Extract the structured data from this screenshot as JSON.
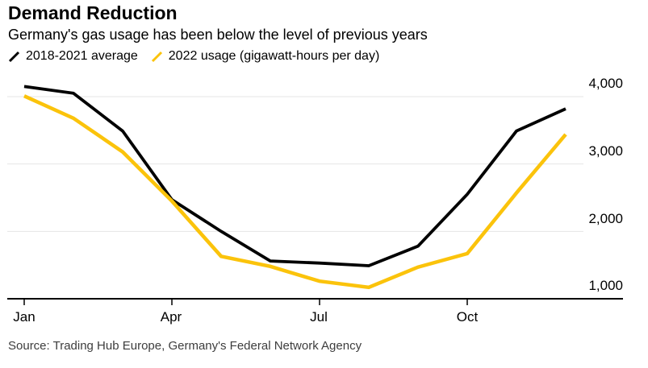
{
  "header": {
    "title": "Demand Reduction",
    "subtitle": "Germany's gas usage has been below the level of previous years"
  },
  "legend": [
    {
      "label": "2018-2021 average",
      "color": "#000000"
    },
    {
      "label": "2022 usage (gigawatt-hours per day)",
      "color": "#FBC30B"
    }
  ],
  "source": "Source: Trading Hub Europe, Germany's Federal Network Agency",
  "colors": {
    "series_average": "#000000",
    "series_2022": "#FBC30B",
    "gridline": "#E4E4E4",
    "axis": "#000000",
    "source_text": "#3d3d3d"
  },
  "chart_data": {
    "type": "line",
    "title": "Demand Reduction",
    "subtitle": "Germany's gas usage has been below the level of previous years",
    "unit": "gigawatt-hours per day",
    "x": [
      "Jan",
      "Feb",
      "Mar",
      "Apr",
      "May",
      "Jun",
      "Jul",
      "Aug",
      "Sep",
      "Oct",
      "Nov",
      "Dec"
    ],
    "series": [
      {
        "name": "2018-2021 average",
        "color": "#000000",
        "values": [
          4150,
          4050,
          3490,
          2470,
          2000,
          1560,
          1530,
          1490,
          1780,
          2550,
          3490,
          3820
        ]
      },
      {
        "name": "2022 usage",
        "color": "#FBC30B",
        "values": [
          4010,
          3680,
          3180,
          2450,
          1630,
          1480,
          1260,
          1170,
          1470,
          1670,
          2570,
          3440
        ]
      }
    ],
    "ylim": [
      1000,
      4200
    ],
    "y_ticks": [
      4000,
      3000,
      2000,
      1000
    ],
    "y_tick_labels": [
      "4,000",
      "3,000",
      "2,000",
      "1,000"
    ],
    "x_tick_labels": [
      "Jan",
      "Apr",
      "Jul",
      "Oct"
    ],
    "grid": "horizontal",
    "legend_position": "top-left",
    "y_axis_side": "right",
    "baseline_value": 1000
  }
}
